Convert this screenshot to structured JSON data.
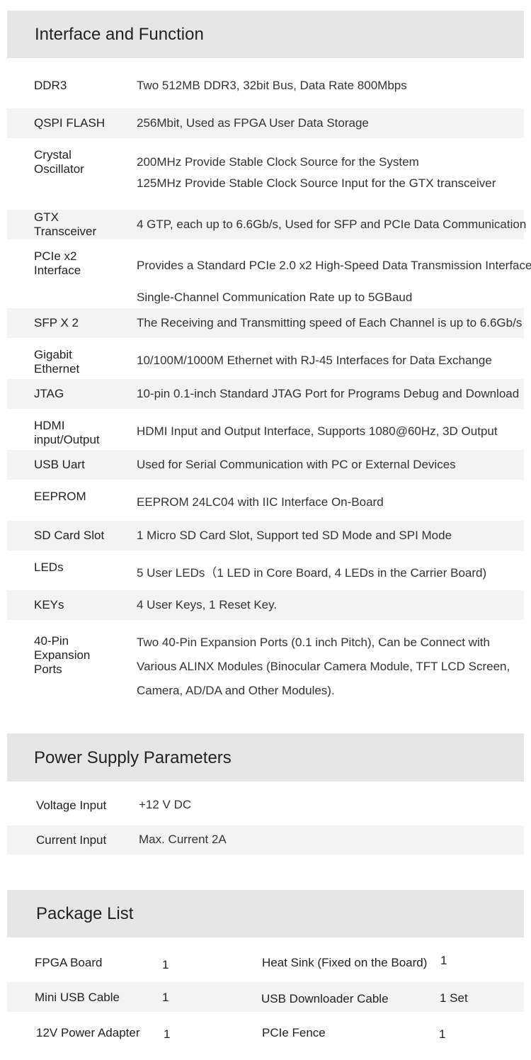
{
  "interface": {
    "title": "Interface and Function",
    "rows": [
      {
        "label": "DDR3",
        "lines": [
          "Two 512MB DDR3, 32bit Bus, Data Rate 800Mbps"
        ]
      },
      {
        "label": "QSPI FLASH",
        "lines": [
          "256Mbit, Used as FPGA User Data Storage"
        ]
      },
      {
        "label": "Crystal Oscillator",
        "lines": [
          "200MHz Provide Stable Clock Source for the System",
          "125MHz Provide Stable Clock Source Input for the GTX transceiver"
        ]
      },
      {
        "label": "GTX Transceiver",
        "lines": [
          "4 GTP, each up to 6.6Gb/s, Used for SFP and PCIe Data Communication"
        ]
      },
      {
        "label": "PCIe x2 Interface",
        "lines": [
          "Provides a Standard PCIe 2.0 x2 High-Speed Data Transmission Interface",
          "Single-Channel Communication Rate up to 5GBaud"
        ]
      },
      {
        "label": "SFP X 2",
        "lines": [
          "The Receiving and Transmitting speed of Each Channel is up to 6.6Gb/s"
        ]
      },
      {
        "label": "Gigabit Ethernet",
        "lines": [
          "10/100M/1000M Ethernet with RJ-45 Interfaces for Data Exchange"
        ]
      },
      {
        "label": "JTAG",
        "lines": [
          "10-pin 0.1-inch Standard JTAG Port for Programs Debug and Download"
        ]
      },
      {
        "label": "HDMI input/Output",
        "lines": [
          "HDMI Input and Output Interface, Supports 1080@60Hz, 3D Output"
        ]
      },
      {
        "label": "USB Uart",
        "lines": [
          "Used for Serial Communication with PC or External Devices"
        ]
      },
      {
        "label": "EEPROM",
        "lines": [
          "EEPROM 24LC04 with IIC Interface On-Board"
        ]
      },
      {
        "label": "SD Card Slot",
        "lines": [
          "1 Micro SD Card Slot,  Support ted SD Mode and SPI Mode"
        ]
      },
      {
        "label": "LEDs",
        "lines": [
          "5 User LEDs（1 LED in Core Board, 4 LEDs in the Carrier Board)"
        ]
      },
      {
        "label": "KEYs",
        "lines": [
          "4 User Keys, 1 Reset Key."
        ]
      },
      {
        "label": "40-Pin Expansion Ports",
        "lines": [
          "Two 40-Pin Expansion Ports (0.1 inch Pitch), Can be Connect with",
          "Various ALINX Modules (Binocular Camera Module, TFT LCD Screen,",
          "Camera, AD/DA and Other Modules)."
        ]
      }
    ]
  },
  "power": {
    "title": "Power Supply Parameters",
    "rows": [
      {
        "label": "Voltage Input",
        "value": "+12 V DC"
      },
      {
        "label": "Current Input",
        "value": "Max. Current 2A"
      }
    ]
  },
  "package": {
    "title": "Package List",
    "rows": [
      {
        "item1": "FPGA Board",
        "qty1": "1",
        "item2": "Heat Sink (Fixed on the Board)",
        "qty2": "1"
      },
      {
        "item1": "Mini USB Cable",
        "qty1": "1",
        "item2": "USB Downloader Cable",
        "qty2": "1 Set"
      },
      {
        "item1": "12V Power Adapter",
        "qty1": "1",
        "item2": "PCIe Fence",
        "qty2": "1"
      }
    ]
  }
}
